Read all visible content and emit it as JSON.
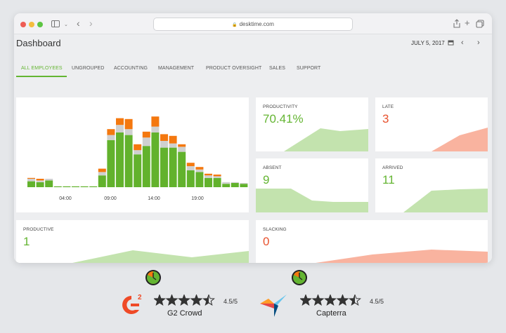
{
  "browser": {
    "url": "desktime.com"
  },
  "header": {
    "title": "Dashboard",
    "date": "JULY 5, 2017"
  },
  "tabs": [
    {
      "label": "ALL EMPLOYEES",
      "active": true
    },
    {
      "label": "UNGROUPED"
    },
    {
      "label": "ACCOUNTING"
    },
    {
      "label": "MANAGEMENT"
    },
    {
      "label": "PRODUCT OVERSIGHT"
    },
    {
      "label": "SALES"
    },
    {
      "label": "SUPPORT"
    }
  ],
  "activity_chart": {
    "x_labels": [
      "04:00",
      "09:00",
      "14:00",
      "19:00"
    ],
    "bars": [
      {
        "green": 7,
        "gray": 3,
        "orange": 1
      },
      {
        "green": 6,
        "gray": 2,
        "orange": 2
      },
      {
        "green": 8,
        "gray": 2,
        "orange": 0
      },
      {
        "green": 1,
        "gray": 0,
        "orange": 0
      },
      {
        "green": 1,
        "gray": 0,
        "orange": 0
      },
      {
        "green": 1,
        "gray": 0,
        "orange": 0
      },
      {
        "green": 1,
        "gray": 0,
        "orange": 0
      },
      {
        "green": 1,
        "gray": 0,
        "orange": 0
      },
      {
        "green": 14,
        "gray": 4,
        "orange": 4
      },
      {
        "green": 56,
        "gray": 6,
        "orange": 7
      },
      {
        "green": 65,
        "gray": 9,
        "orange": 8
      },
      {
        "green": 62,
        "gray": 7,
        "orange": 12
      },
      {
        "green": 39,
        "gray": 5,
        "orange": 7
      },
      {
        "green": 49,
        "gray": 10,
        "orange": 7
      },
      {
        "green": 65,
        "gray": 7,
        "orange": 12
      },
      {
        "green": 47,
        "gray": 8,
        "orange": 8
      },
      {
        "green": 47,
        "gray": 5,
        "orange": 9
      },
      {
        "green": 42,
        "gray": 6,
        "orange": 3
      },
      {
        "green": 20,
        "gray": 5,
        "orange": 4
      },
      {
        "green": 18,
        "gray": 3,
        "orange": 3
      },
      {
        "green": 11,
        "gray": 3,
        "orange": 2
      },
      {
        "green": 11,
        "gray": 2,
        "orange": 2
      },
      {
        "green": 4,
        "gray": 2,
        "orange": 0
      },
      {
        "green": 5,
        "gray": 1,
        "orange": 0
      },
      {
        "green": 4,
        "gray": 1,
        "orange": 0
      }
    ],
    "colors": {
      "productive": "#62b22c",
      "neutral": "#cfd0d0",
      "unproductive": "#f4780f"
    }
  },
  "metrics": {
    "productivity": {
      "label": "PRODUCTIVITY",
      "value": "70.41%"
    },
    "late": {
      "label": "LATE",
      "value": "3"
    },
    "absent": {
      "label": "ABSENT",
      "value": "9"
    },
    "arrived": {
      "label": "ARRIVED",
      "value": "11"
    },
    "productive": {
      "label": "PRODUCTIVE",
      "value": "1"
    },
    "slacking": {
      "label": "SLACKING",
      "value": "0"
    }
  },
  "colors": {
    "accent_green": "#64b532",
    "accent_red": "#e8522e",
    "area_green": "#c3e3ae",
    "area_red": "#f9b39f"
  },
  "reviews": [
    {
      "name": "G2 Crowd",
      "rating": "4.5/5",
      "stars": 4.5
    },
    {
      "name": "Capterra",
      "rating": "4.5/5",
      "stars": 4.5
    }
  ]
}
